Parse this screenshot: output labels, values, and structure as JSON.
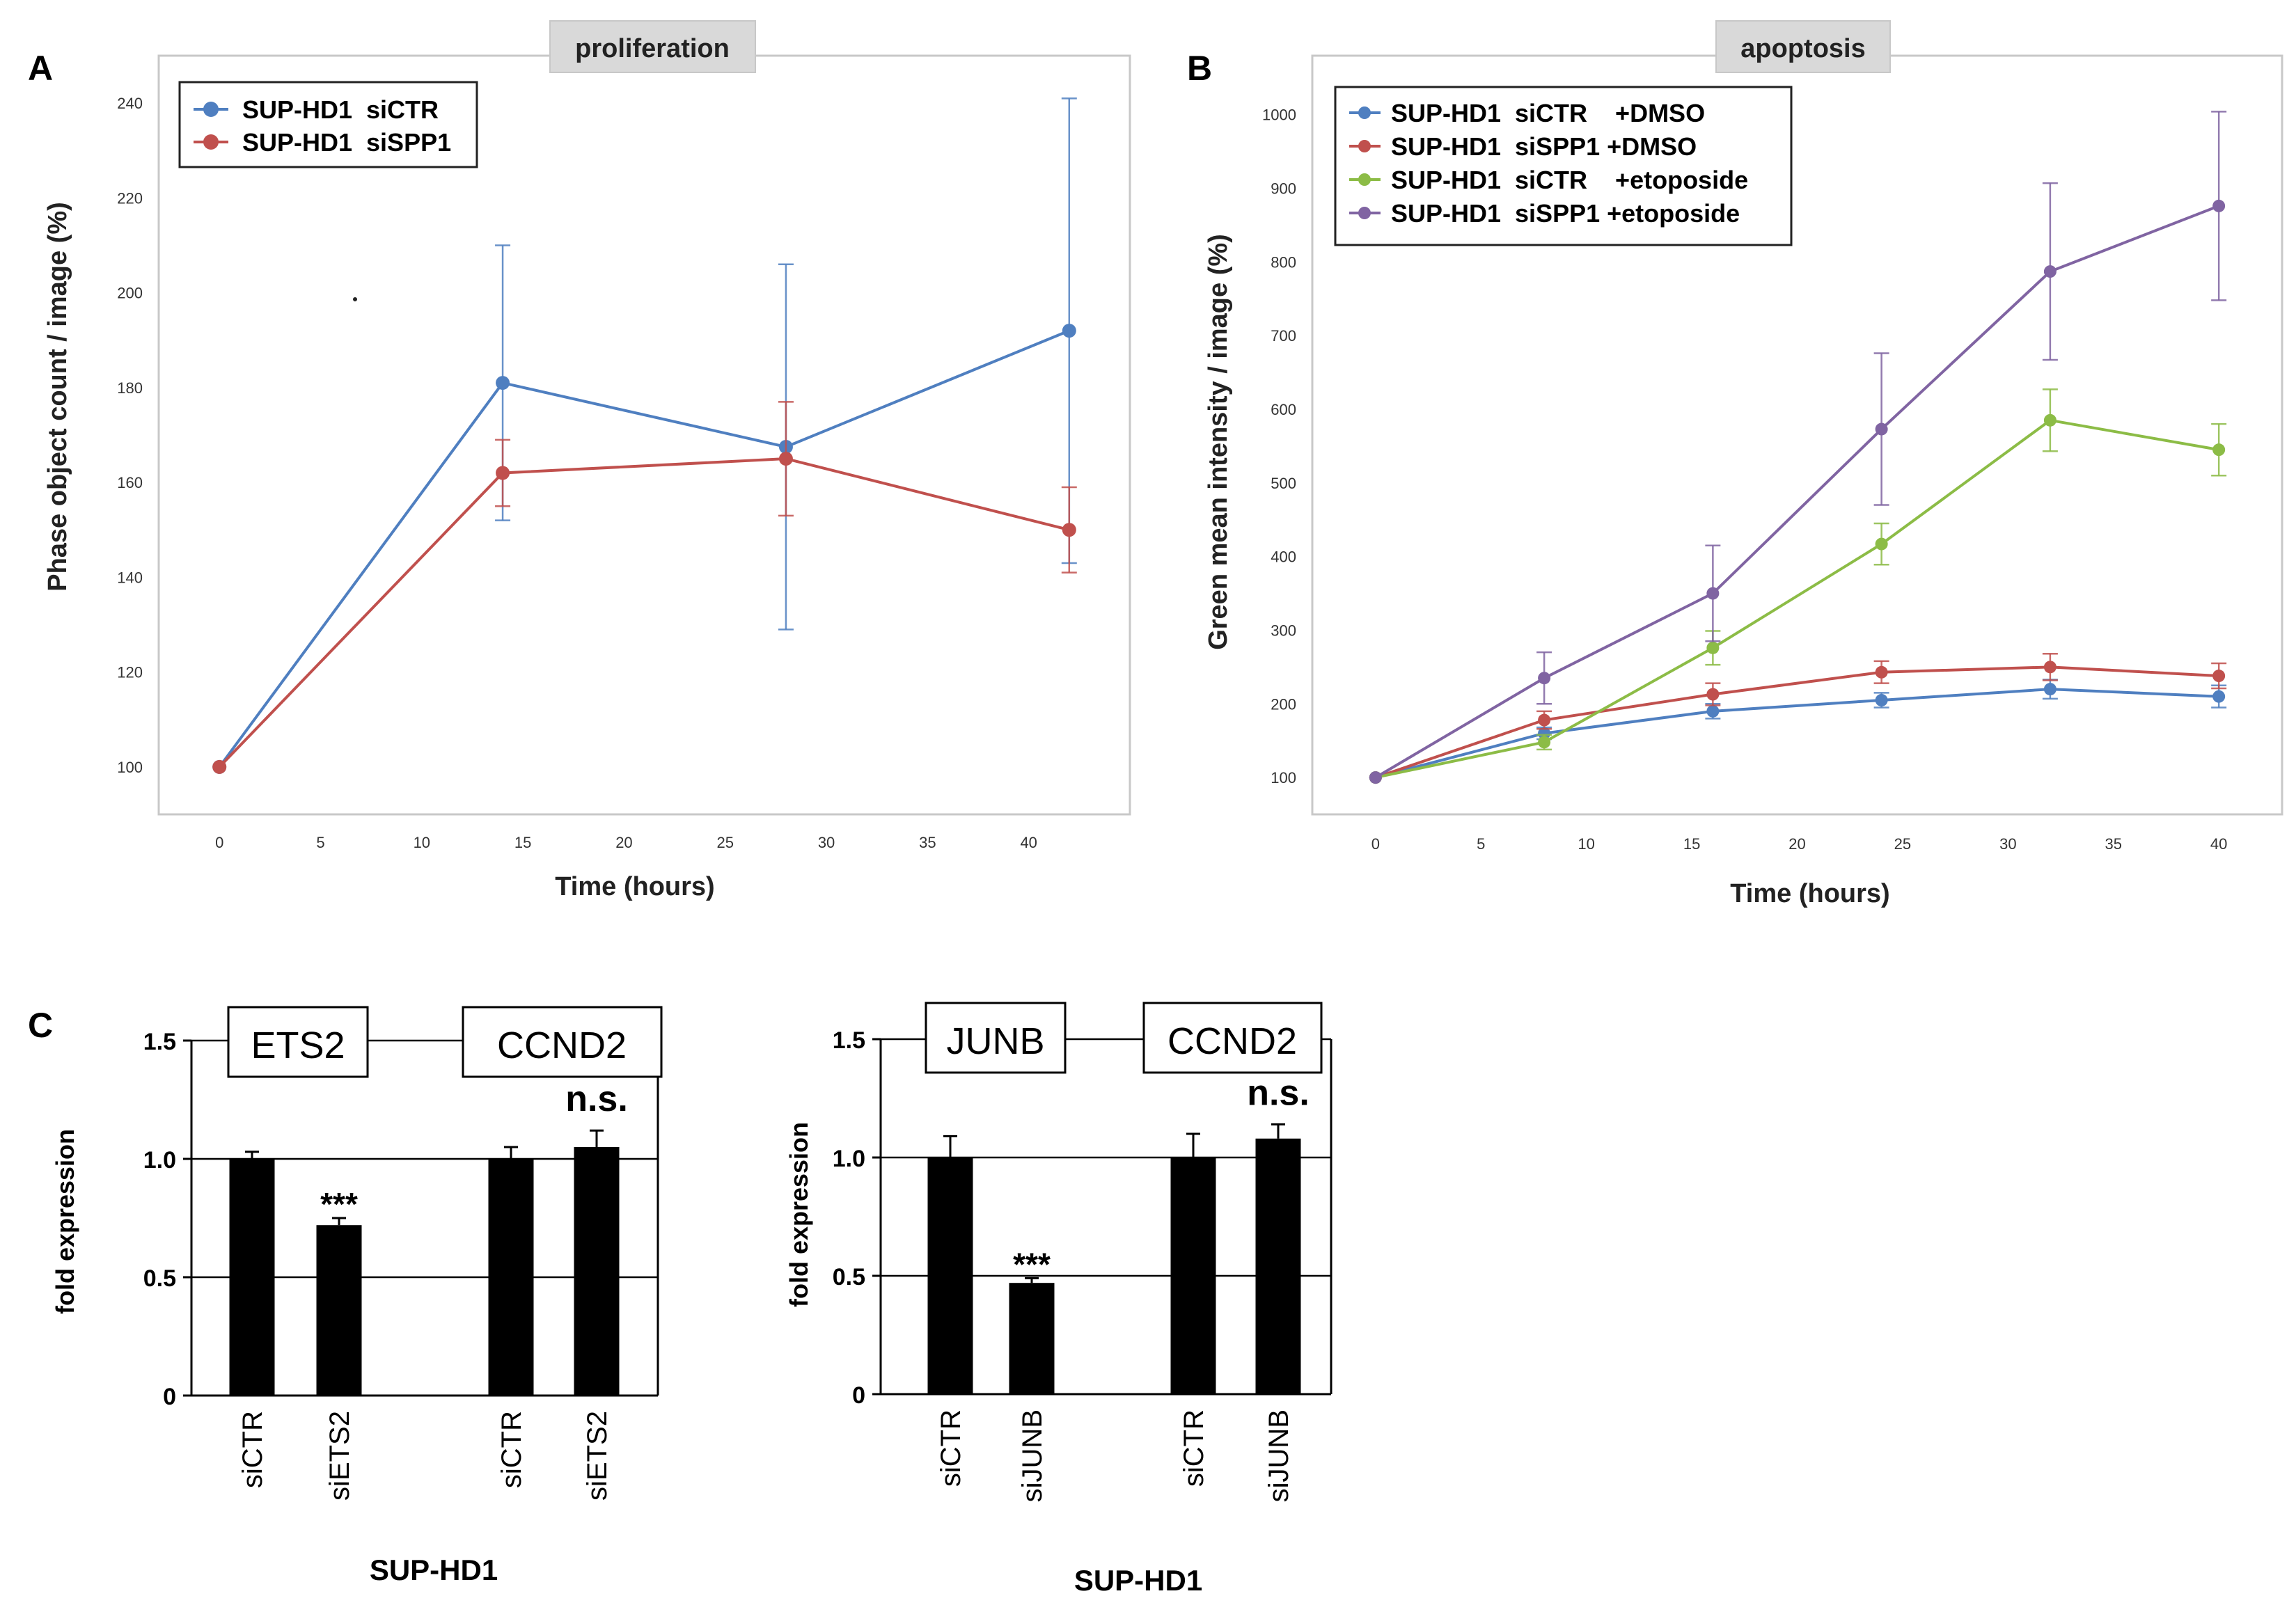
{
  "panels": {
    "A": {
      "letter": "A",
      "title": "proliferation"
    },
    "B": {
      "letter": "B",
      "title": "apoptosis"
    },
    "C": {
      "letter": "C"
    }
  },
  "colors": {
    "blue": "#4f7fc0",
    "red": "#c0504d",
    "green": "#8cbc46",
    "purple": "#8064a2",
    "bar": "#000000",
    "frame": "#c8c8c8",
    "titleBg": "#d9d9d9"
  },
  "chart_data": [
    {
      "id": "A",
      "type": "line",
      "title": "proliferation",
      "xlabel": "Time (hours)",
      "ylabel": "Phase object count / image (%)",
      "xlim": [
        -3,
        45
      ],
      "ylim": [
        90,
        250
      ],
      "xticks": [
        0,
        5,
        10,
        15,
        20,
        25,
        30,
        35,
        40
      ],
      "yticks": [
        100,
        120,
        140,
        160,
        180,
        200,
        220,
        240
      ],
      "grid": false,
      "legend": "top-left",
      "series": [
        {
          "name": "SUP-HD1  siCTR",
          "color": "#4f7fc0",
          "x": [
            0,
            14,
            28,
            42
          ],
          "y": [
            100,
            181,
            167.5,
            192
          ],
          "err": [
            0,
            29,
            38.5,
            49
          ]
        },
        {
          "name": "SUP-HD1  siSPP1",
          "color": "#c0504d",
          "x": [
            0,
            14,
            28,
            42
          ],
          "y": [
            100,
            162,
            165,
            150
          ],
          "err": [
            0,
            7,
            12,
            9
          ]
        }
      ]
    },
    {
      "id": "B",
      "type": "line",
      "title": "apoptosis",
      "xlabel": "Time (hours)",
      "ylabel": "Green mean intensity / image (%)",
      "xlim": [
        -3,
        43
      ],
      "ylim": [
        50,
        1080
      ],
      "xticks": [
        0,
        5,
        10,
        15,
        20,
        25,
        30,
        35,
        40
      ],
      "yticks": [
        100,
        200,
        300,
        400,
        500,
        600,
        700,
        800,
        900,
        1000
      ],
      "grid": false,
      "legend": "top-left",
      "series": [
        {
          "name": "SUP-HD1  siCTR    +DMSO",
          "color": "#4f7fc0",
          "x": [
            0,
            8,
            16,
            24,
            32,
            40
          ],
          "y": [
            100,
            160,
            190,
            205,
            220,
            210
          ],
          "err": [
            0,
            8,
            10,
            10,
            13,
            15
          ]
        },
        {
          "name": "SUP-HD1  siSPP1 +DMSO",
          "color": "#c0504d",
          "x": [
            0,
            8,
            16,
            24,
            32,
            40
          ],
          "y": [
            100,
            178,
            213,
            243,
            250,
            238
          ],
          "err": [
            0,
            12,
            15,
            15,
            18,
            17
          ]
        },
        {
          "name": "SUP-HD1  siCTR    +etoposide",
          "color": "#8cbc46",
          "x": [
            0,
            8,
            16,
            24,
            32,
            40
          ],
          "y": [
            100,
            148,
            276,
            417,
            585,
            545
          ],
          "err": [
            0,
            10,
            23,
            28,
            42,
            35
          ]
        },
        {
          "name": "SUP-HD1  siSPP1 +etoposide",
          "color": "#8064a2",
          "x": [
            0,
            8,
            16,
            24,
            32,
            40
          ],
          "y": [
            100,
            235,
            350,
            573,
            787,
            876
          ],
          "err": [
            0,
            35,
            65,
            103,
            120,
            128
          ]
        }
      ]
    },
    {
      "id": "C1",
      "type": "bar",
      "ylabel": "fold expression",
      "xlabel": "SUP-HD1",
      "ylim": [
        0,
        1.5
      ],
      "yticks": [
        "0",
        "0.5",
        "1.0",
        "1.5"
      ],
      "categories": [
        "siCTR",
        "siETS2",
        "siCTR",
        "siETS2"
      ],
      "values": [
        1.0,
        0.72,
        1.0,
        1.05
      ],
      "errors": [
        0.03,
        0.03,
        0.05,
        0.07
      ],
      "groups": [
        "ETS2",
        "CCND2"
      ],
      "annotations": [
        {
          "bar": 1,
          "text": "***"
        },
        {
          "bar": 3,
          "text": "n.s."
        }
      ]
    },
    {
      "id": "C2",
      "type": "bar",
      "ylabel": "fold expression",
      "xlabel": "SUP-HD1",
      "ylim": [
        0,
        1.5
      ],
      "yticks": [
        "0",
        "0.5",
        "1.0",
        "1.5"
      ],
      "categories": [
        "siCTR",
        "siJUNB",
        "siCTR",
        "siJUNB"
      ],
      "values": [
        1.0,
        0.47,
        1.0,
        1.08
      ],
      "errors": [
        0.09,
        0.02,
        0.1,
        0.06
      ],
      "groups": [
        "JUNB",
        "CCND2"
      ],
      "annotations": [
        {
          "bar": 1,
          "text": "***"
        },
        {
          "bar": 3,
          "text": "n.s."
        }
      ]
    }
  ]
}
